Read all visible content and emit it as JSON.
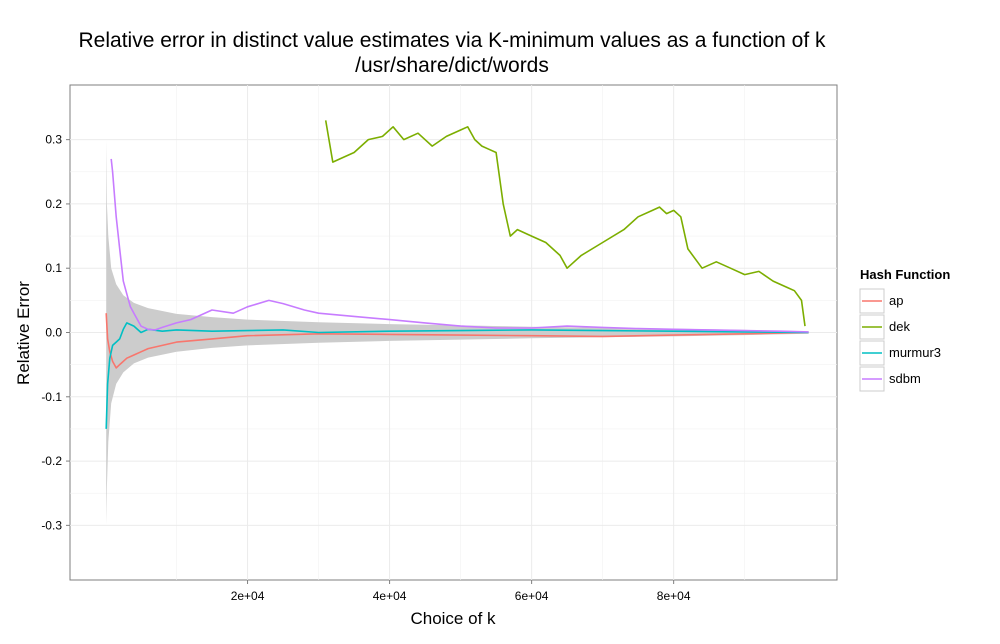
{
  "chart_data": {
    "type": "line",
    "title": "Relative error in distinct value estimates via K-minimum values as a function of k",
    "subtitle": "/usr/share/dict/words",
    "xlabel": "Choice of k",
    "ylabel": "Relative Error",
    "xlim": [
      -5000,
      103000
    ],
    "ylim": [
      -0.385,
      0.385
    ],
    "x_ticks": [
      20000,
      40000,
      60000,
      80000
    ],
    "x_tick_labels": [
      "2e+04",
      "4e+04",
      "6e+04",
      "8e+04"
    ],
    "y_ticks": [
      -0.3,
      -0.2,
      -0.1,
      0.0,
      0.1,
      0.2,
      0.3
    ],
    "y_tick_labels": [
      "-0.3",
      "-0.2",
      "-0.1",
      "0.0",
      "0.1",
      "0.2",
      "0.3"
    ],
    "grid": true,
    "legend": {
      "title": "Hash Function",
      "position": "right"
    },
    "band": {
      "fill": "#cccccc",
      "x": [
        100,
        200,
        400,
        800,
        1500,
        2500,
        4000,
        6000,
        10000,
        15000,
        20000,
        30000,
        40000,
        50000,
        60000,
        70000,
        80000,
        90000,
        99000
      ],
      "upper": [
        0.3,
        0.2,
        0.15,
        0.1,
        0.075,
        0.058,
        0.046,
        0.038,
        0.029,
        0.024,
        0.02,
        0.016,
        0.013,
        0.011,
        0.009,
        0.0075,
        0.006,
        0.004,
        0.002
      ],
      "lower": [
        -0.3,
        -0.24,
        -0.17,
        -0.11,
        -0.08,
        -0.062,
        -0.048,
        -0.039,
        -0.03,
        -0.024,
        -0.02,
        -0.016,
        -0.013,
        -0.011,
        -0.009,
        -0.0075,
        -0.006,
        -0.004,
        -0.002
      ]
    },
    "series": [
      {
        "name": "ap",
        "color": "#f8766d",
        "x": [
          100,
          300,
          600,
          1000,
          1500,
          2000,
          3000,
          4000,
          5000,
          6000,
          8000,
          10000,
          15000,
          20000,
          30000,
          40000,
          50000,
          60000,
          70000,
          80000,
          90000,
          99000
        ],
        "y": [
          0.03,
          -0.01,
          -0.03,
          -0.045,
          -0.055,
          -0.05,
          -0.04,
          -0.035,
          -0.03,
          -0.025,
          -0.02,
          -0.015,
          -0.01,
          -0.005,
          -0.002,
          -0.003,
          -0.004,
          -0.005,
          -0.006,
          -0.004,
          -0.002,
          0.0
        ]
      },
      {
        "name": "dek",
        "color": "#7cae00",
        "x": [
          31000,
          32000,
          33000,
          35000,
          37000,
          39000,
          40500,
          42000,
          44000,
          46000,
          48000,
          50000,
          51000,
          52000,
          53000,
          54000,
          55000,
          56000,
          57000,
          58000,
          60000,
          62000,
          64000,
          65000,
          67000,
          70000,
          73000,
          75000,
          77000,
          78000,
          79000,
          80000,
          81000,
          82000,
          84000,
          86000,
          88000,
          90000,
          92000,
          94000,
          96000,
          97000,
          98000,
          98500
        ],
        "y": [
          0.33,
          0.265,
          0.27,
          0.28,
          0.3,
          0.305,
          0.32,
          0.3,
          0.31,
          0.29,
          0.305,
          0.315,
          0.32,
          0.3,
          0.29,
          0.285,
          0.28,
          0.2,
          0.15,
          0.16,
          0.15,
          0.14,
          0.12,
          0.1,
          0.12,
          0.14,
          0.16,
          0.18,
          0.19,
          0.195,
          0.185,
          0.19,
          0.18,
          0.13,
          0.1,
          0.11,
          0.1,
          0.09,
          0.095,
          0.08,
          0.07,
          0.065,
          0.05,
          0.01
        ]
      },
      {
        "name": "murmur3",
        "color": "#00bfc4",
        "x": [
          100,
          300,
          600,
          1000,
          1500,
          2000,
          2500,
          3000,
          4000,
          5000,
          6000,
          8000,
          10000,
          15000,
          20000,
          25000,
          30000,
          40000,
          50000,
          60000,
          70000,
          80000,
          90000,
          99000
        ],
        "y": [
          -0.15,
          -0.08,
          -0.04,
          -0.02,
          -0.015,
          -0.01,
          0.005,
          0.015,
          0.01,
          0.0,
          0.005,
          0.002,
          0.004,
          0.002,
          0.003,
          0.004,
          0.0,
          0.002,
          0.003,
          0.004,
          0.003,
          0.002,
          0.001,
          0.0
        ]
      },
      {
        "name": "sdbm",
        "color": "#c77cff",
        "x": [
          800,
          1000,
          1500,
          2000,
          2500,
          3000,
          3500,
          4000,
          5000,
          6000,
          7000,
          8000,
          10000,
          12000,
          15000,
          18000,
          20000,
          23000,
          25000,
          28000,
          30000,
          35000,
          40000,
          45000,
          50000,
          55000,
          60000,
          65000,
          70000,
          75000,
          80000,
          85000,
          90000,
          95000,
          99000
        ],
        "y": [
          0.27,
          0.25,
          0.18,
          0.13,
          0.08,
          0.06,
          0.04,
          0.03,
          0.01,
          0.005,
          0.004,
          0.008,
          0.015,
          0.02,
          0.035,
          0.03,
          0.04,
          0.05,
          0.045,
          0.035,
          0.03,
          0.025,
          0.02,
          0.015,
          0.01,
          0.007,
          0.007,
          0.01,
          0.008,
          0.006,
          0.005,
          0.004,
          0.003,
          0.002,
          0.001
        ]
      }
    ]
  }
}
